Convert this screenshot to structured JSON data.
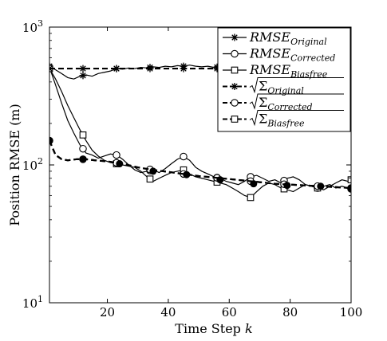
{
  "chart_data": {
    "type": "line",
    "title": "",
    "xlabel": "Time Step",
    "xlabel_var": "k",
    "ylabel": "Position RMSE (m)",
    "xlim": [
      1,
      100
    ],
    "ylim": [
      10,
      1000
    ],
    "yscale": "log",
    "xticks": [
      20,
      40,
      60,
      80,
      100
    ],
    "yticks": [
      {
        "value": 10,
        "base": "10",
        "exp": "1"
      },
      {
        "value": 100,
        "base": "10",
        "exp": "2"
      },
      {
        "value": 1000,
        "base": "10",
        "exp": "3"
      }
    ],
    "grid": false,
    "legend_position": "top-right",
    "series": [
      {
        "name": "RMSE",
        "sub": "Original",
        "sqrt": false,
        "marker": "star",
        "dash": "solid",
        "markers": [
          1,
          12,
          23,
          34,
          45,
          56,
          67,
          78,
          89,
          100
        ],
        "x": [
          1,
          3,
          5,
          7,
          9,
          11,
          13,
          15,
          17,
          19,
          21,
          23,
          25,
          27,
          29,
          31,
          33,
          35,
          37,
          39,
          41,
          43,
          45,
          47,
          49,
          51,
          53,
          55,
          57,
          59,
          61,
          63,
          65,
          67,
          69,
          71,
          73,
          75,
          77,
          79,
          81,
          83,
          85,
          87,
          89,
          91,
          93,
          95,
          97,
          99,
          100
        ],
        "y": [
          520,
          490,
          460,
          430,
          420,
          440,
          450,
          440,
          460,
          470,
          480,
          500,
          495,
          505,
          500,
          510,
          505,
          515,
          510,
          520,
          515,
          525,
          520,
          530,
          520,
          515,
          520,
          510,
          515,
          505,
          510,
          500,
          505,
          495,
          500,
          505,
          500,
          510,
          505,
          500,
          505,
          510,
          500,
          505,
          500,
          510,
          505,
          500,
          505,
          500,
          500
        ]
      },
      {
        "name": "RMSE",
        "sub": "Corrected",
        "sqrt": false,
        "marker": "circle",
        "dash": "solid",
        "markers": [
          1,
          12,
          23,
          34,
          45,
          56,
          67,
          78,
          89,
          100
        ],
        "x": [
          1,
          3,
          5,
          7,
          9,
          11,
          13,
          15,
          17,
          19,
          21,
          23,
          25,
          27,
          29,
          31,
          33,
          35,
          37,
          39,
          41,
          43,
          45,
          47,
          49,
          51,
          53,
          55,
          57,
          59,
          61,
          63,
          65,
          67,
          69,
          71,
          73,
          75,
          77,
          79,
          81,
          83,
          85,
          87,
          89,
          91,
          93,
          95,
          97,
          99,
          100
        ],
        "y": [
          510,
          380,
          280,
          210,
          170,
          140,
          122,
          118,
          112,
          116,
          120,
          118,
          110,
          100,
          92,
          88,
          90,
          92,
          88,
          94,
          102,
          110,
          115,
          108,
          96,
          90,
          86,
          82,
          80,
          76,
          74,
          72,
          76,
          82,
          84,
          80,
          76,
          78,
          74,
          80,
          82,
          78,
          72,
          70,
          68,
          70,
          72,
          68,
          70,
          68,
          67
        ]
      },
      {
        "name": "RMSE",
        "sub": "Biasfree",
        "sqrt": false,
        "marker": "square",
        "dash": "solid",
        "markers": [
          1,
          12,
          23,
          34,
          45,
          56,
          67,
          78,
          89,
          100
        ],
        "x": [
          1,
          3,
          5,
          7,
          9,
          11,
          13,
          15,
          17,
          19,
          21,
          23,
          25,
          27,
          29,
          31,
          33,
          35,
          37,
          39,
          41,
          43,
          45,
          47,
          49,
          51,
          53,
          55,
          57,
          59,
          61,
          63,
          65,
          67,
          69,
          71,
          73,
          75,
          77,
          79,
          81,
          83,
          85,
          87,
          89,
          91,
          93,
          95,
          97,
          99,
          100
        ],
        "y": [
          500,
          420,
          340,
          270,
          220,
          180,
          150,
          128,
          116,
          108,
          104,
          102,
          100,
          98,
          96,
          90,
          82,
          76,
          80,
          84,
          88,
          90,
          92,
          86,
          82,
          80,
          78,
          76,
          74,
          72,
          68,
          64,
          60,
          58,
          64,
          70,
          74,
          72,
          68,
          66,
          64,
          68,
          72,
          70,
          68,
          66,
          70,
          74,
          78,
          76,
          78
        ]
      },
      {
        "name": "Σ",
        "sub": "Original",
        "sqrt": true,
        "marker": "star",
        "dash": "dashed",
        "markers": [
          1,
          12,
          23,
          34,
          45,
          56,
          67,
          78,
          89,
          100
        ],
        "x": [
          1,
          100
        ],
        "y": [
          500,
          500
        ]
      },
      {
        "name": "Σ",
        "sub": "Corrected",
        "sqrt": true,
        "marker": "circle",
        "dash": "dashed",
        "markers": [
          1,
          12,
          23,
          34,
          45,
          56,
          67,
          78,
          89,
          100
        ],
        "x": [
          1,
          3,
          5,
          7,
          10,
          13,
          16,
          20,
          25,
          30,
          35,
          40,
          45,
          50,
          55,
          60,
          65,
          70,
          75,
          80,
          85,
          90,
          95,
          100
        ],
        "y": [
          150,
          118,
          110,
          108,
          110,
          110,
          108,
          106,
          102,
          96,
          92,
          89,
          86,
          83,
          81,
          79,
          77,
          75,
          73,
          72,
          71,
          70,
          69,
          68
        ]
      },
      {
        "name": "Σ",
        "sub": "Biasfree",
        "sqrt": true,
        "marker": "square",
        "dash": "dashed",
        "markers": [],
        "x": [
          1,
          3,
          5,
          7,
          10,
          13,
          16,
          20,
          25,
          30,
          35,
          40,
          45,
          50,
          55,
          60,
          65,
          70,
          75,
          80,
          85,
          90,
          95,
          100
        ],
        "y": [
          150,
          118,
          110,
          108,
          110,
          110,
          108,
          106,
          102,
          96,
          92,
          89,
          86,
          83,
          81,
          79,
          77,
          75,
          73,
          72,
          71,
          70,
          69,
          68
        ]
      }
    ],
    "highlights": [
      {
        "x": 1,
        "y": 150
      },
      {
        "x": 12,
        "y": 110
      },
      {
        "x": 24,
        "y": 102
      },
      {
        "x": 35,
        "y": 90
      },
      {
        "x": 46,
        "y": 85
      },
      {
        "x": 57,
        "y": 78
      },
      {
        "x": 68,
        "y": 73
      },
      {
        "x": 79,
        "y": 71
      },
      {
        "x": 90,
        "y": 70
      },
      {
        "x": 100,
        "y": 68
      }
    ]
  }
}
